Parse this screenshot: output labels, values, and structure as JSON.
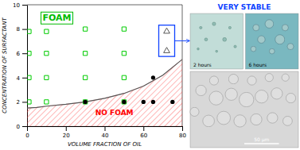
{
  "chart_data": {
    "type": "scatter",
    "xlabel": "VOLUME FRACTION OF OIL",
    "ylabel": "CONCENTRATION OF SURFACTANT",
    "xlim": [
      0,
      80
    ],
    "ylim": [
      0,
      10
    ],
    "xticks": [
      0,
      20,
      40,
      60,
      80
    ],
    "yticks": [
      0,
      2,
      4,
      6,
      8,
      10
    ],
    "series": [
      {
        "type": "area",
        "x": [
          0,
          5,
          10,
          20,
          30,
          40,
          50,
          60,
          70,
          80
        ],
        "values": [
          1.5,
          1.55,
          1.65,
          1.8,
          2.0,
          2.3,
          2.7,
          3.3,
          4.2,
          5.5
        ],
        "color": "#ff4444"
      },
      {
        "type": "line",
        "x": [
          0,
          5,
          10,
          20,
          30,
          40,
          50,
          60,
          70,
          80
        ],
        "values": [
          1.5,
          1.55,
          1.65,
          1.8,
          2.0,
          2.3,
          2.7,
          3.3,
          4.2,
          5.5
        ],
        "color": "#555555"
      },
      {
        "type": "scatter",
        "marker": "square",
        "x": [
          1,
          1,
          1,
          1,
          10,
          10,
          10,
          10,
          30,
          30,
          30,
          30,
          50,
          50,
          50,
          50
        ],
        "values": [
          2,
          4,
          6,
          7.8,
          2,
          4,
          6,
          7.8,
          2,
          4,
          6,
          8,
          2,
          4,
          6,
          8
        ],
        "color": "#00cc00"
      },
      {
        "type": "scatter",
        "marker": "circle",
        "x": [
          30,
          50,
          60,
          65,
          75,
          65
        ],
        "values": [
          2,
          2,
          2,
          2,
          2,
          4
        ],
        "color": "#000000"
      },
      {
        "type": "scatter",
        "marker": "triangle",
        "x": [
          72,
          72
        ],
        "values": [
          7.8,
          6.2
        ],
        "color": "#555555"
      }
    ],
    "annotations": [
      {
        "text": "FOAM",
        "x": 8,
        "y": 9.2,
        "color": "#00bb00"
      },
      {
        "text": "NO FOAM",
        "x": 45,
        "y": 0.9,
        "color": "#ff0000"
      },
      {
        "text": "VERY STABLE",
        "color": "#1144ff"
      },
      {
        "text": "2 hours"
      },
      {
        "text": "6 hours"
      },
      {
        "text": "50 μm"
      }
    ]
  }
}
